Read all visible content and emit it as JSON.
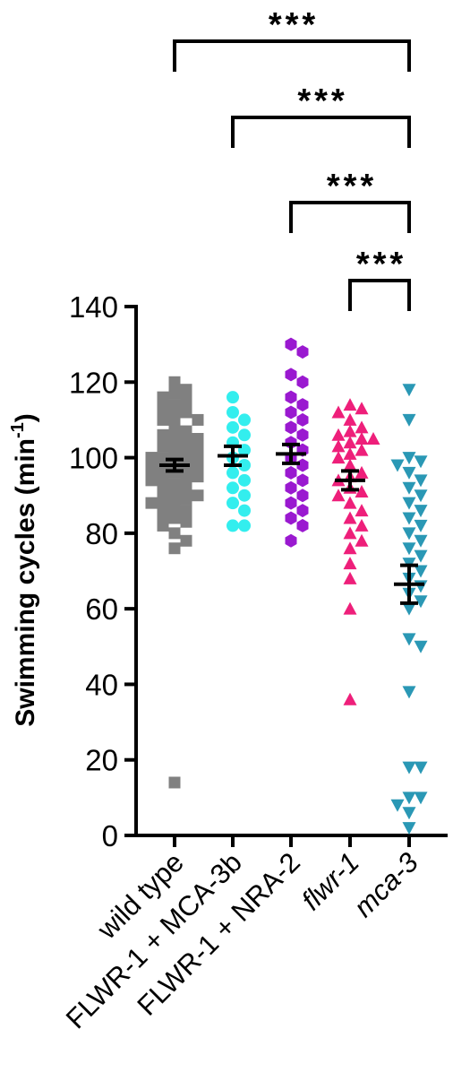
{
  "chart_data": {
    "type": "scatter",
    "ylabel": "Swimming cycles (min",
    "ylabel_sup": "-1",
    "ylabel_close": ")",
    "ylim": [
      0,
      140
    ],
    "yticks": [
      0,
      20,
      40,
      60,
      80,
      100,
      120,
      140
    ],
    "grid": false,
    "categories": [
      "wild type",
      "FLWR-1 + MCA-3b",
      "FLWR-1 + NRA-2",
      "flwr-1",
      "mca-3"
    ],
    "italic_categories": [
      "flwr-1",
      "mca-3"
    ],
    "series": [
      {
        "category": "wild type",
        "marker": "square",
        "color": "#808080",
        "mean": 98,
        "sem": 1.5,
        "values": [
          120,
          118,
          117,
          116,
          115,
          114,
          113,
          112,
          111,
          110,
          110,
          108,
          107,
          106,
          105,
          105,
          104,
          103,
          102,
          102,
          101,
          100,
          100,
          100,
          99,
          99,
          98,
          98,
          97,
          97,
          96,
          96,
          95,
          95,
          94,
          94,
          93,
          92,
          91,
          90,
          90,
          89,
          88,
          88,
          87,
          86,
          85,
          84,
          83,
          82,
          80,
          78,
          76,
          14
        ]
      },
      {
        "category": "FLWR-1 + MCA-3b",
        "marker": "circle",
        "color": "#33eeee",
        "mean": 100.5,
        "sem": 2.5,
        "values": [
          116,
          112,
          110,
          108,
          106,
          104,
          102,
          100,
          98,
          96,
          94,
          92,
          90,
          88,
          86,
          82,
          82
        ]
      },
      {
        "category": "FLWR-1 + NRA-2",
        "marker": "hexagon",
        "color": "#9a19d0",
        "mean": 101,
        "sem": 2.5,
        "values": [
          130,
          128,
          122,
          120,
          116,
          114,
          112,
          110,
          108,
          106,
          104,
          102,
          100,
          98,
          96,
          94,
          92,
          90,
          88,
          86,
          84,
          82,
          78
        ]
      },
      {
        "category": "flwr-1",
        "marker": "triangle-up",
        "color": "#ee1f7a",
        "mean": 94,
        "sem": 2.5,
        "values": [
          114,
          113,
          112,
          110,
          108,
          107,
          106,
          105,
          105,
          104,
          103,
          102,
          101,
          100,
          98,
          96,
          95,
          94,
          92,
          91,
          90,
          88,
          86,
          84,
          82,
          80,
          78,
          76,
          72,
          68,
          60,
          36
        ]
      },
      {
        "category": "mca-3",
        "marker": "triangle-down",
        "color": "#2a98b5",
        "mean": 66.5,
        "sem": 5,
        "values": [
          118,
          110,
          100,
          99,
          98,
          96,
          94,
          92,
          90,
          88,
          86,
          84,
          82,
          80,
          78,
          76,
          74,
          72,
          70,
          68,
          66,
          64,
          62,
          60,
          52,
          50,
          38,
          18,
          18,
          10,
          10,
          8,
          6,
          2
        ]
      }
    ],
    "significance": [
      {
        "from": "wild type",
        "to": "mca-3",
        "label": "***"
      },
      {
        "from": "FLWR-1 + MCA-3b",
        "to": "mca-3",
        "label": "***"
      },
      {
        "from": "FLWR-1 + NRA-2",
        "to": "mca-3",
        "label": "***"
      },
      {
        "from": "flwr-1",
        "to": "mca-3",
        "label": "***"
      }
    ]
  }
}
